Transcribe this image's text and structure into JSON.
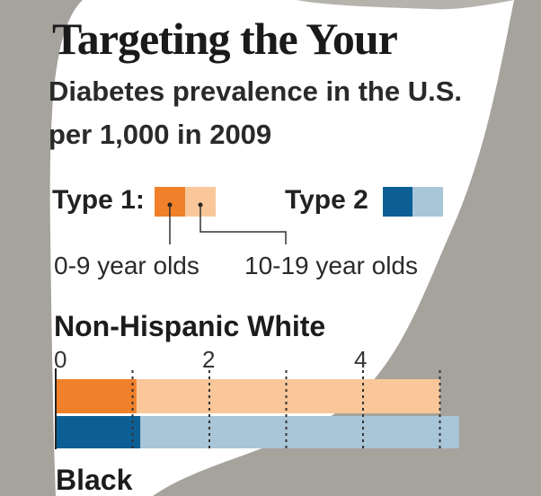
{
  "header": {
    "title": "Targeting the Your",
    "subtitle_line1": "Diabetes prevalence in the U.S.",
    "subtitle_line2": "per 1,000 in 2009"
  },
  "legend": {
    "type1_label": "Type 1:",
    "type2_label": "Type 2",
    "age_young": "0-9 year olds",
    "age_old": "10-19 year olds"
  },
  "colors": {
    "type1_young": "#f08029",
    "type1_old": "#f9c79a",
    "type2_young": "#0b5f94",
    "type2_old": "#a9c5d8",
    "backdrop": "#a6a39d"
  },
  "chart_data": {
    "type": "bar",
    "orientation": "horizontal",
    "title": "Targeting the Your",
    "subtitle": "Diabetes prevalence in the U.S. per 1,000 in 2009",
    "xlim": [
      0,
      5
    ],
    "xticks": [
      0,
      2,
      4
    ],
    "grid": true,
    "categories": [
      "Non-Hispanic White",
      "Black"
    ],
    "series": [
      {
        "name": "Type 1: 0-9 year olds",
        "values": [
          1.05,
          null
        ]
      },
      {
        "name": "Type 1: 10-19 year olds",
        "values": [
          5.0,
          null
        ]
      },
      {
        "name": "Type 2: 0-9 year olds",
        "values": [
          1.1,
          null
        ]
      },
      {
        "name": "Type 2: 10-19 year olds",
        "values": [
          5.25,
          null
        ]
      }
    ]
  }
}
